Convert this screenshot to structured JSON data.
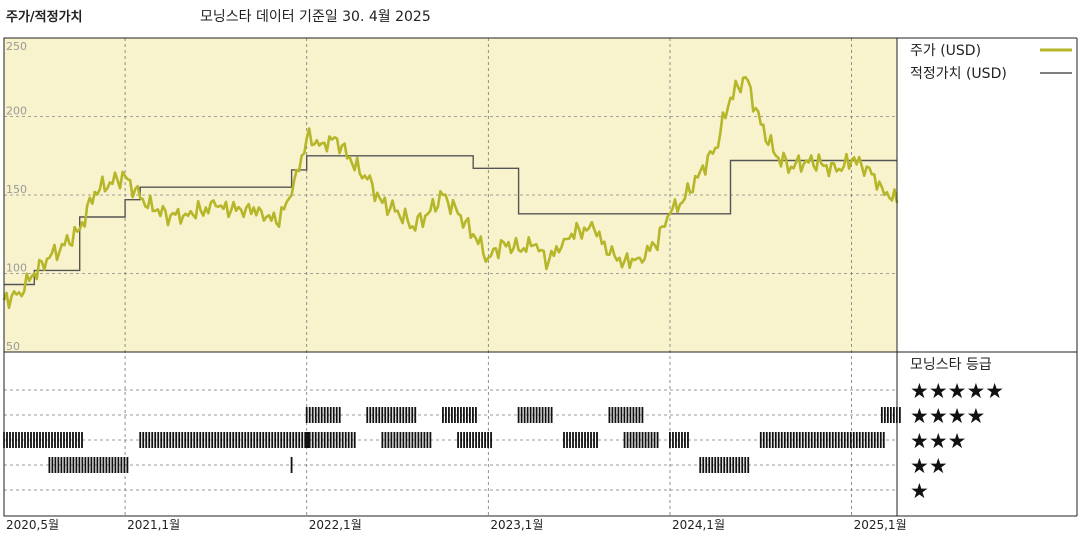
{
  "header": {
    "title": "주가/적정가치",
    "subtitle": "모닝스타 데이터 기준일 30. 4월 2025"
  },
  "chart_data": [
    {
      "type": "line",
      "title": "주가/적정가치",
      "subtitle": "모닝스타 데이터 기준일 30. 4월 2025",
      "xlabel": "",
      "ylabel": "",
      "ylim": [
        50,
        250
      ],
      "y_ticks": [
        "250",
        "200",
        "150",
        "100",
        "50"
      ],
      "x_tick_labels": [
        "2020,5월",
        "2021,1월",
        "2022,1월",
        "2023,1월",
        "2024,1월",
        "2025,1월"
      ],
      "x_tick_dates": [
        "2020-05",
        "2021-01",
        "2022-01",
        "2023-01",
        "2024-01",
        "2025-01"
      ],
      "x_range": [
        "2020-05",
        "2025-04"
      ],
      "grid": true,
      "background_color": "#f8f3cc",
      "legend_position": "right",
      "series": [
        {
          "name": "주가 (USD)",
          "color": "#b5b62a",
          "points": [
            [
              "2020-05",
              83
            ],
            [
              "2020-06",
              88
            ],
            [
              "2020-07",
              100
            ],
            [
              "2020-08",
              110
            ],
            [
              "2020-09",
              118
            ],
            [
              "2020-10",
              128
            ],
            [
              "2020-11",
              152
            ],
            [
              "2020-12",
              158
            ],
            [
              "2021-01",
              162
            ],
            [
              "2021-02",
              148
            ],
            [
              "2021-03",
              140
            ],
            [
              "2021-04",
              137
            ],
            [
              "2021-05",
              138
            ],
            [
              "2021-06",
              140
            ],
            [
              "2021-07",
              143
            ],
            [
              "2021-08",
              140
            ],
            [
              "2021-09",
              142
            ],
            [
              "2021-10",
              140
            ],
            [
              "2021-11",
              132
            ],
            [
              "2021-12",
              150
            ],
            [
              "2022-01",
              186
            ],
            [
              "2022-02",
              183
            ],
            [
              "2022-03",
              186
            ],
            [
              "2022-04",
              170
            ],
            [
              "2022-05",
              160
            ],
            [
              "2022-06",
              145
            ],
            [
              "2022-07",
              140
            ],
            [
              "2022-08",
              130
            ],
            [
              "2022-09",
              138
            ],
            [
              "2022-10",
              150
            ],
            [
              "2022-11",
              138
            ],
            [
              "2022-12",
              125
            ],
            [
              "2023-01",
              110
            ],
            [
              "2023-02",
              120
            ],
            [
              "2023-03",
              115
            ],
            [
              "2023-04",
              118
            ],
            [
              "2023-05",
              108
            ],
            [
              "2023-06",
              122
            ],
            [
              "2023-07",
              128
            ],
            [
              "2023-08",
              128
            ],
            [
              "2023-09",
              112
            ],
            [
              "2023-10",
              108
            ],
            [
              "2023-11",
              110
            ],
            [
              "2023-12",
              118
            ],
            [
              "2024-01",
              138
            ],
            [
              "2024-02",
              148
            ],
            [
              "2024-03",
              165
            ],
            [
              "2024-04",
              180
            ],
            [
              "2024-05",
              212
            ],
            [
              "2024-06",
              225
            ],
            [
              "2024-07",
              195
            ],
            [
              "2024-08",
              175
            ],
            [
              "2024-09",
              168
            ],
            [
              "2024-10",
              172
            ],
            [
              "2024-11",
              170
            ],
            [
              "2024-12",
              165
            ],
            [
              "2025-01",
              172
            ],
            [
              "2025-02",
              168
            ],
            [
              "2025-03",
              155
            ],
            [
              "2025-04",
              145
            ]
          ]
        },
        {
          "name": "적정가치 (USD)",
          "color": "#555555",
          "points": [
            [
              "2020-05",
              93
            ],
            [
              "2020-07",
              93
            ],
            [
              "2020-07",
              102
            ],
            [
              "2020-10",
              102
            ],
            [
              "2020-10",
              136
            ],
            [
              "2021-01",
              136
            ],
            [
              "2021-01",
              147
            ],
            [
              "2021-02",
              147
            ],
            [
              "2021-02",
              155
            ],
            [
              "2021-12",
              155
            ],
            [
              "2021-12",
              166
            ],
            [
              "2022-01",
              166
            ],
            [
              "2022-01",
              175
            ],
            [
              "2022-12",
              175
            ],
            [
              "2022-12",
              167
            ],
            [
              "2023-03",
              167
            ],
            [
              "2023-03",
              138
            ],
            [
              "2024-05",
              138
            ],
            [
              "2024-05",
              172
            ],
            [
              "2025-04",
              172
            ]
          ]
        }
      ]
    },
    {
      "type": "bar",
      "title": "모닝스타 등급",
      "rating_labels": [
        "★★★★★",
        "★★★★",
        "★★★",
        "★★",
        "★"
      ],
      "periods": [
        {
          "stars": 3,
          "start": "2020-05",
          "end": "2020-10"
        },
        {
          "stars": 2,
          "start": "2020-08",
          "end": "2021-01"
        },
        {
          "stars": 3,
          "start": "2021-02",
          "end": "2022-01"
        },
        {
          "stars": 2,
          "start": "2021-12",
          "end": "2021-12"
        },
        {
          "stars": 4,
          "start": "2022-01",
          "end": "2022-03"
        },
        {
          "stars": 3,
          "start": "2022-01",
          "end": "2022-04"
        },
        {
          "stars": 4,
          "start": "2022-05",
          "end": "2022-08"
        },
        {
          "stars": 3,
          "start": "2022-06",
          "end": "2022-09"
        },
        {
          "stars": 4,
          "start": "2022-10",
          "end": "2022-12"
        },
        {
          "stars": 3,
          "start": "2022-11",
          "end": "2023-01"
        },
        {
          "stars": 4,
          "start": "2023-03",
          "end": "2023-05"
        },
        {
          "stars": 3,
          "start": "2023-06",
          "end": "2023-08"
        },
        {
          "stars": 4,
          "start": "2023-09",
          "end": "2023-11"
        },
        {
          "stars": 3,
          "start": "2023-10",
          "end": "2023-12"
        },
        {
          "stars": 3,
          "start": "2024-01",
          "end": "2024-02"
        },
        {
          "stars": 2,
          "start": "2024-03",
          "end": "2024-06"
        },
        {
          "stars": 3,
          "start": "2024-07",
          "end": "2025-03"
        },
        {
          "stars": 4,
          "start": "2025-03",
          "end": "2025-04"
        }
      ]
    }
  ]
}
